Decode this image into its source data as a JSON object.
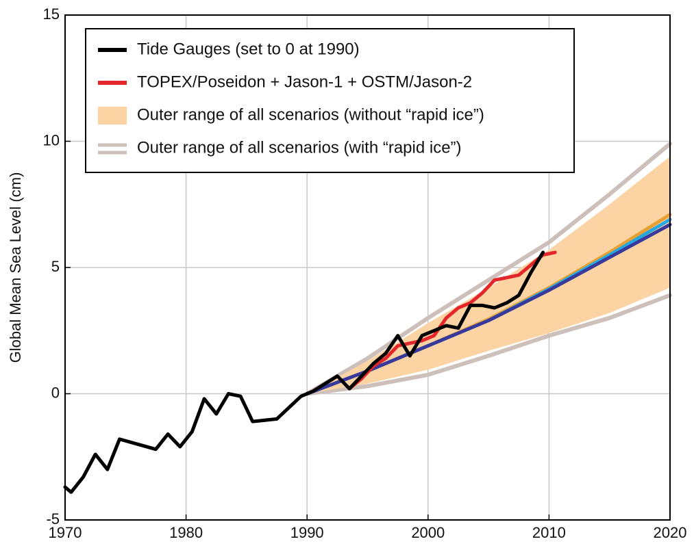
{
  "chart_data": {
    "type": "line",
    "ylabel": "Global Mean Sea Level (cm)",
    "xlim": [
      1970,
      2020
    ],
    "ylim": [
      -5,
      15
    ],
    "xticks": [
      1970,
      1980,
      1990,
      2000,
      2010,
      2020
    ],
    "yticks": [
      -5,
      0,
      5,
      10,
      15
    ],
    "grid": true,
    "legend": "upper-left",
    "series": [
      {
        "name": "Outer range of all scenarios (with “rapid ice”)",
        "kind": "range-lines",
        "color": "#cdbfba",
        "x": [
          1990,
          1995,
          2000,
          2005,
          2010,
          2015,
          2020
        ],
        "lower": [
          0,
          0.3,
          0.75,
          1.5,
          2.3,
          3.0,
          3.9
        ],
        "upper": [
          0,
          1.4,
          3.0,
          4.5,
          6.0,
          7.9,
          9.9
        ]
      },
      {
        "name": "Outer range of all scenarios (without “rapid ice”)",
        "kind": "range-area",
        "color": "#fcd3a2",
        "x": [
          1990,
          1995,
          2000,
          2005,
          2010,
          2015,
          2020
        ],
        "lower": [
          0,
          0.4,
          0.95,
          1.7,
          2.4,
          3.2,
          4.2
        ],
        "upper": [
          0,
          1.3,
          2.8,
          4.2,
          5.7,
          7.5,
          9.4
        ]
      },
      {
        "name": "TOPEX/Poseidon + Jason-1 + OSTM/Jason-2",
        "kind": "line",
        "color": "#e3262b",
        "x": [
          1993.5,
          1994.5,
          1995.5,
          1996.5,
          1997.5,
          1998.5,
          1999.5,
          2000.5,
          2001.5,
          2002.5,
          2003.5,
          2004.5,
          2005.5,
          2006.5,
          2007.5,
          2008.5,
          2009.5,
          2010.5
        ],
        "values": [
          0.2,
          0.6,
          1.1,
          1.4,
          1.9,
          2.0,
          2.1,
          2.3,
          3.0,
          3.4,
          3.6,
          4.0,
          4.5,
          4.6,
          4.7,
          5.1,
          5.5,
          5.6
        ]
      },
      {
        "name": "Tide Gauges (set to 0 at 1990)",
        "kind": "line",
        "color": "#000000",
        "x": [
          1970,
          1970.5,
          1971.5,
          1972.5,
          1973.5,
          1974.5,
          1976,
          1977.5,
          1978.5,
          1979.5,
          1980.5,
          1981.5,
          1982.5,
          1983.5,
          1984.5,
          1985.5,
          1987.5,
          1989.5,
          1990.5,
          1991.5,
          1992.5,
          1993.5,
          1994.5,
          1995.5,
          1996.5,
          1997.5,
          1998.5,
          1999.5,
          2000.5,
          2001.5,
          2002.5,
          2003.5,
          2004.5,
          2005.5,
          2006.5,
          2007.5,
          2008.5,
          2009.5
        ],
        "values": [
          -3.7,
          -3.9,
          -3.3,
          -2.4,
          -3.0,
          -1.8,
          -2.0,
          -2.2,
          -1.6,
          -2.1,
          -1.5,
          -0.2,
          -0.8,
          0.0,
          -0.1,
          -1.1,
          -1.0,
          -0.1,
          0.1,
          0.4,
          0.7,
          0.2,
          0.7,
          1.2,
          1.6,
          2.3,
          1.5,
          2.3,
          2.5,
          2.7,
          2.6,
          3.5,
          3.5,
          3.4,
          3.6,
          3.9,
          4.8,
          5.6
        ]
      }
    ],
    "projections": [
      {
        "color": "#e9a033",
        "x": [
          1990,
          1995,
          2000,
          2005,
          2010,
          2015,
          2020
        ],
        "values": [
          0,
          0.9,
          1.9,
          2.95,
          4.2,
          5.6,
          7.1
        ]
      },
      {
        "color": "#27a8e0",
        "x": [
          1990,
          1995,
          2000,
          2005,
          2010,
          2015,
          2020
        ],
        "values": [
          0,
          0.9,
          1.9,
          2.9,
          4.15,
          5.5,
          6.9
        ]
      },
      {
        "color": "#38399a",
        "x": [
          1990,
          1995,
          2000,
          2005,
          2010,
          2015,
          2020
        ],
        "values": [
          0,
          0.9,
          1.9,
          2.9,
          4.1,
          5.4,
          6.7
        ]
      }
    ]
  }
}
